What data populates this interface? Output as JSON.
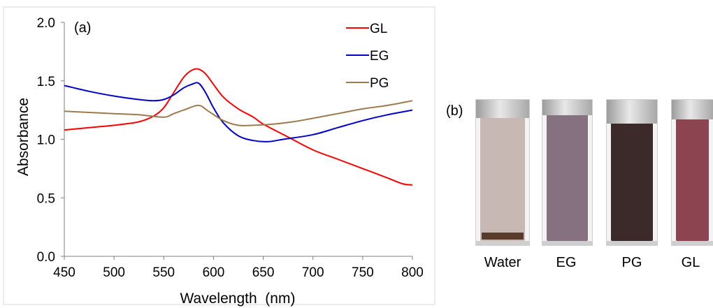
{
  "panel_a_label": "(a)",
  "panel_b_label": "(b)",
  "chart_data": {
    "type": "line",
    "title": "",
    "xlabel": "Wavelength  (nm)",
    "ylabel": "Absorbance",
    "xlim": [
      450,
      800
    ],
    "ylim": [
      0.0,
      2.0
    ],
    "x_ticks": [
      "450",
      "500",
      "550",
      "600",
      "650",
      "700",
      "750",
      "800"
    ],
    "y_ticks": [
      "0.0",
      "0.5",
      "1.0",
      "1.5",
      "2.0"
    ],
    "grid": false,
    "legend_position": "top-right",
    "series": [
      {
        "name": "GL",
        "color": "#ff0000",
        "x": [
          450,
          475,
          500,
          525,
          540,
          550,
          560,
          570,
          578,
          585,
          592,
          600,
          610,
          625,
          640,
          650,
          675,
          700,
          725,
          750,
          775,
          790,
          800
        ],
        "y": [
          1.08,
          1.1,
          1.12,
          1.15,
          1.2,
          1.27,
          1.4,
          1.53,
          1.59,
          1.6,
          1.56,
          1.47,
          1.36,
          1.26,
          1.19,
          1.13,
          1.02,
          0.91,
          0.83,
          0.75,
          0.67,
          0.62,
          0.61
        ]
      },
      {
        "name": "EG",
        "color": "#0000cc",
        "x": [
          450,
          475,
          500,
          525,
          540,
          550,
          560,
          570,
          578,
          585,
          592,
          600,
          610,
          625,
          640,
          655,
          670,
          700,
          725,
          750,
          775,
          800
        ],
        "y": [
          1.46,
          1.41,
          1.37,
          1.34,
          1.33,
          1.34,
          1.38,
          1.44,
          1.47,
          1.48,
          1.4,
          1.27,
          1.14,
          1.03,
          0.99,
          0.98,
          1.0,
          1.04,
          1.1,
          1.16,
          1.21,
          1.25
        ]
      },
      {
        "name": "PG",
        "color": "#9c7a4c",
        "x": [
          450,
          475,
          500,
          525,
          550,
          560,
          570,
          585,
          595,
          610,
          625,
          640,
          660,
          680,
          700,
          725,
          750,
          775,
          800
        ],
        "y": [
          1.24,
          1.23,
          1.22,
          1.21,
          1.19,
          1.22,
          1.25,
          1.29,
          1.24,
          1.16,
          1.12,
          1.12,
          1.13,
          1.15,
          1.18,
          1.22,
          1.26,
          1.29,
          1.33
        ]
      }
    ]
  },
  "photo_labels": [
    "Water",
    "EG",
    "PG",
    "GL"
  ],
  "photo_colors": [
    "#c8b8b3",
    "#857180",
    "#3c2a2a",
    "#8c4550"
  ]
}
